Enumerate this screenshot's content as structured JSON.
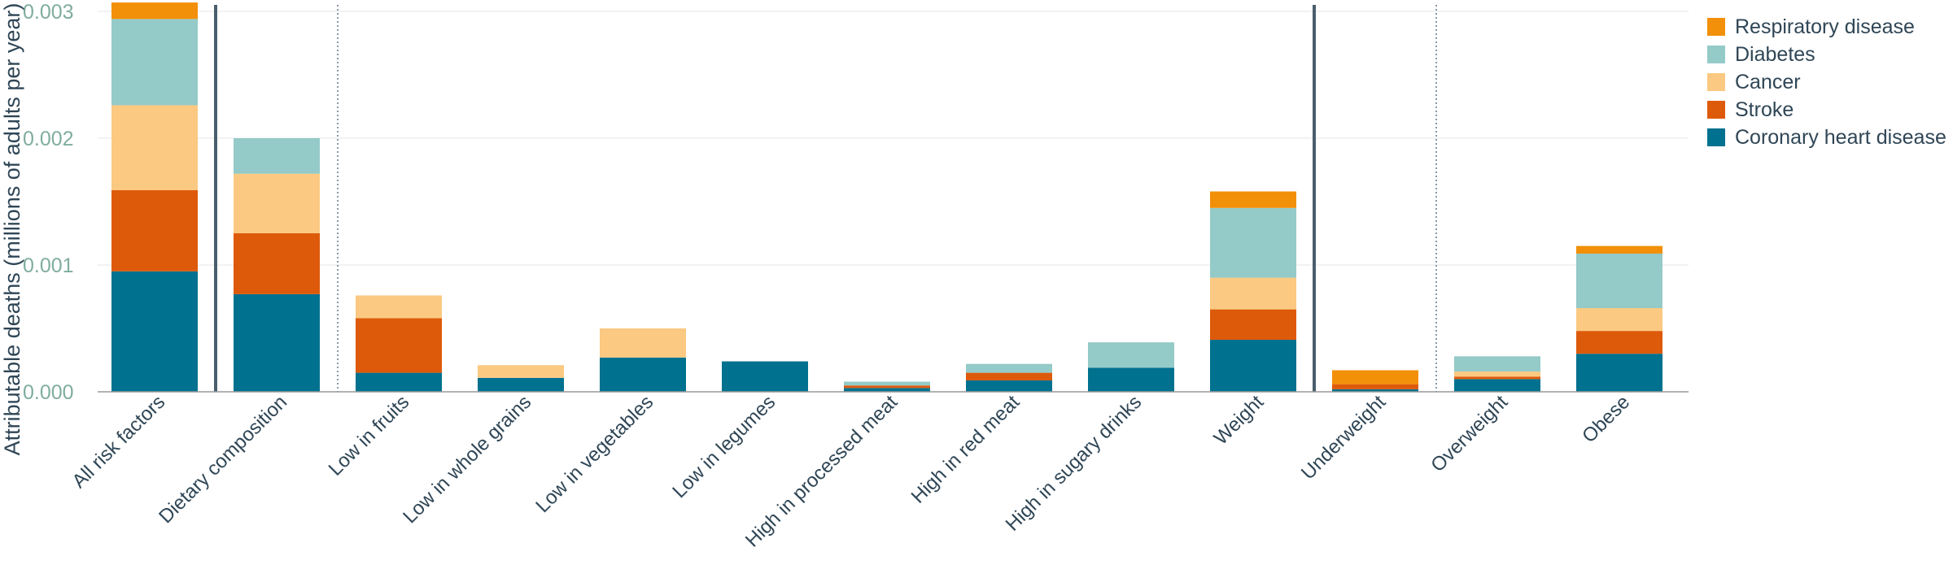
{
  "chart_data": {
    "type": "bar",
    "stacked": true,
    "ylabel": "Attributable deaths (millions of adults per year)",
    "xlabel": "",
    "ylim": [
      0,
      0.003
    ],
    "yticks": [
      "0.000",
      "0.001",
      "0.002",
      "0.003"
    ],
    "grid": true,
    "legend_position": "right",
    "categories": [
      "All risk factors",
      "Dietary composition",
      "Low in fruits",
      "Low in whole grains",
      "Low in vegetables",
      "Low in legumes",
      "High in processed meat",
      "High in red meat",
      "High in sugary drinks",
      "Weight",
      "Underweight",
      "Overweight",
      "Obese"
    ],
    "series": [
      {
        "name": "Coronary heart disease",
        "color": "#00718f",
        "values": [
          0.00095,
          0.00077,
          0.00015,
          0.00011,
          0.00027,
          0.00024,
          3e-05,
          9e-05,
          0.00019,
          0.00041,
          2e-05,
          0.0001,
          0.0003
        ]
      },
      {
        "name": "Stroke",
        "color": "#dd5a0b",
        "values": [
          0.00064,
          0.00048,
          0.00043,
          0.0,
          0.0,
          0.0,
          2e-05,
          6e-05,
          0.0,
          0.00024,
          4e-05,
          2e-05,
          0.00018
        ]
      },
      {
        "name": "Cancer",
        "color": "#fbc982",
        "values": [
          0.00067,
          0.00047,
          0.00018,
          0.0001,
          0.00023,
          0.0,
          0.0,
          0.0,
          0.0,
          0.00025,
          0.0,
          4e-05,
          0.00018
        ]
      },
      {
        "name": "Diabetes",
        "color": "#94cac8",
        "values": [
          0.00068,
          0.00028,
          0.0,
          0.0,
          0.0,
          0.0,
          3e-05,
          7e-05,
          0.0002,
          0.00055,
          0.0,
          0.00012,
          0.00043
        ]
      },
      {
        "name": "Respiratory disease",
        "color": "#f29009",
        "values": [
          0.00013,
          0.0,
          0.0,
          0.0,
          0.0,
          0.0,
          0.0,
          0.0,
          0.0,
          0.00013,
          0.00011,
          0.0,
          6e-05
        ]
      }
    ]
  }
}
